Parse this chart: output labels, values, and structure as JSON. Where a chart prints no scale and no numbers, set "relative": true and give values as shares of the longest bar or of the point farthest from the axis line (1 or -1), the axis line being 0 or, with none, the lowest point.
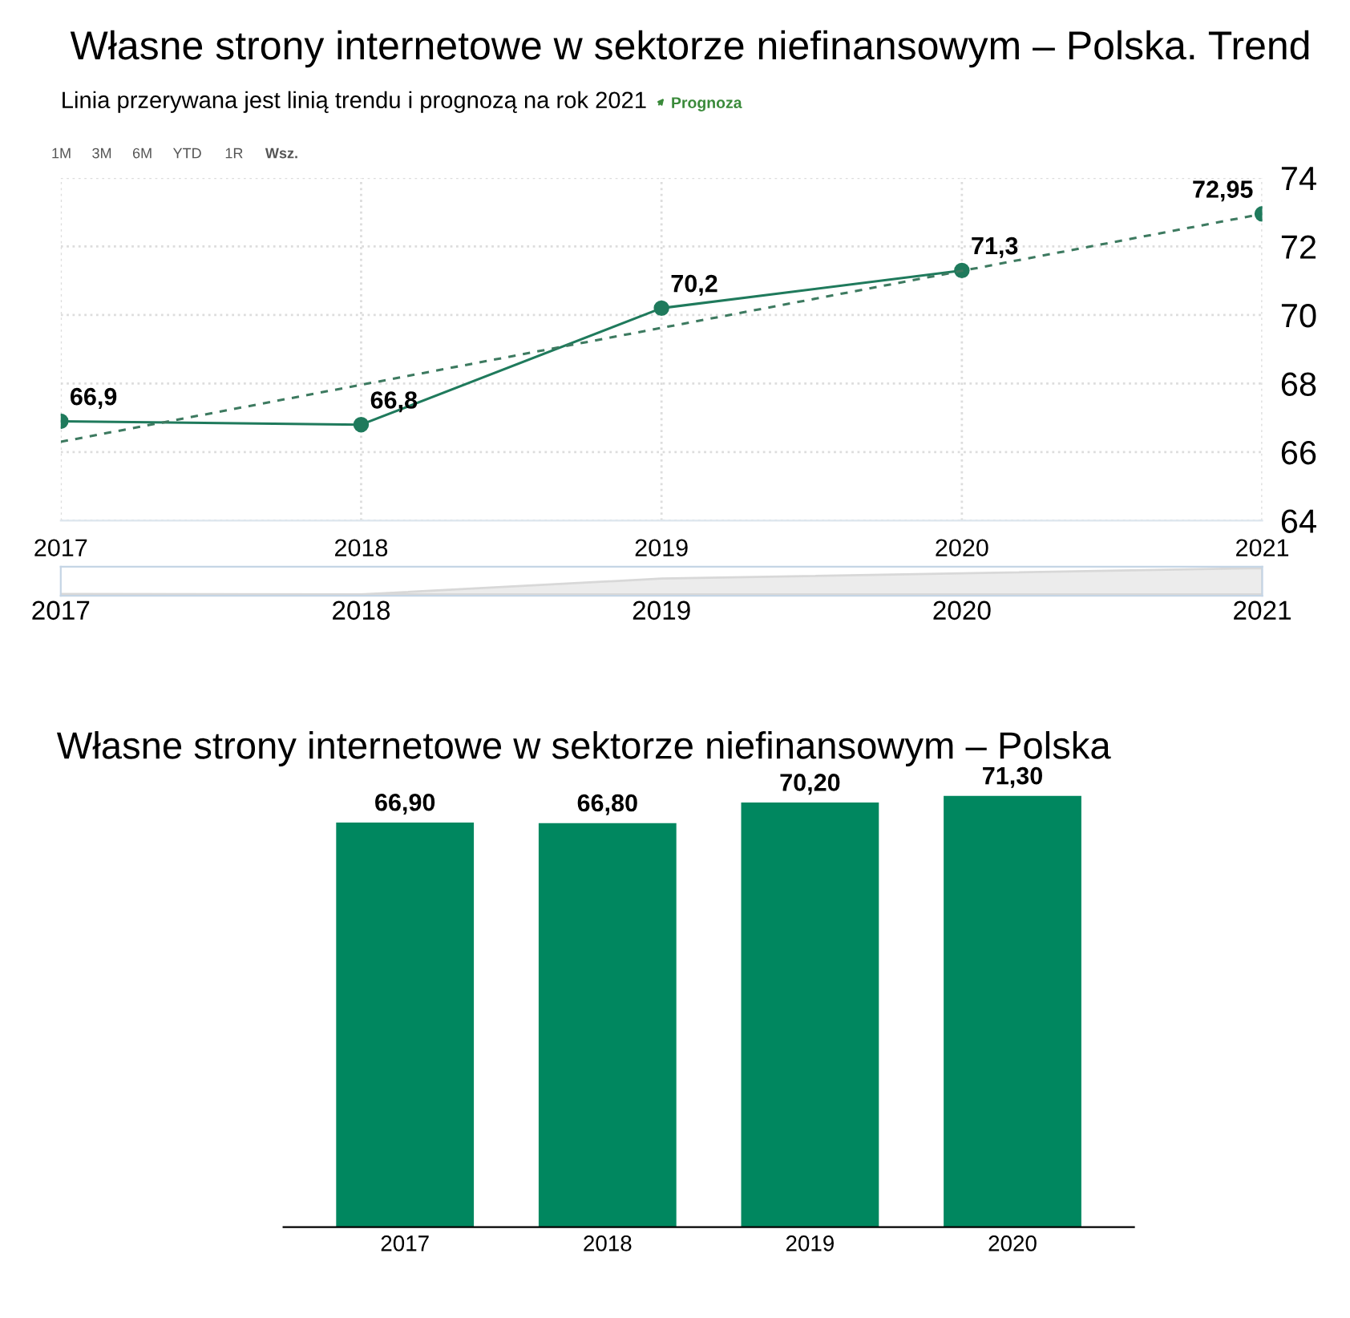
{
  "chart_data": [
    {
      "type": "line",
      "title": "Własne strony internetowe w sektorze niefinansowym – Polska. Trend",
      "subtitle": "Linia przerywana jest linią trendu i prognozą na rok 2021",
      "annotations": [
        "Prognoza",
        "1M",
        "3M",
        "6M",
        "YTD",
        "1R",
        "Wsz."
      ],
      "series": [
        {
          "type": "line",
          "color": "#1f7a5c",
          "x": [
            2017,
            2018,
            2019,
            2020
          ],
          "values": [
            66.9,
            66.8,
            70.2,
            71.3
          ],
          "value_labels": [
            "66,9",
            "66,8",
            "70,2",
            "71,3"
          ],
          "marker": "circle",
          "line_style": "solid"
        },
        {
          "type": "line",
          "color": "#3d7a60",
          "x": [
            2017,
            2021
          ],
          "values": [
            66.3,
            72.95
          ],
          "marker": "none",
          "line_style": "dashed"
        },
        {
          "type": "scatter",
          "color": "#1f7a5c",
          "x": [
            2021
          ],
          "values": [
            72.95
          ],
          "value_labels": [
            "72,95"
          ],
          "marker": "circle"
        }
      ],
      "xlim": [
        2017,
        2021
      ],
      "xticks": [
        2017,
        2018,
        2019,
        2020,
        2021
      ],
      "ylim": [
        64,
        74
      ],
      "yticks": [
        64,
        66,
        68,
        70,
        72,
        74
      ],
      "grid": true
    },
    {
      "type": "area",
      "x": [
        2017,
        2018,
        2019,
        2020,
        2021
      ],
      "values": [
        0.02,
        0,
        0.6,
        0.8,
        1
      ],
      "relative": true,
      "color": "#ececec",
      "xlim": [
        2017,
        2021
      ],
      "xticks": [
        2017,
        2018,
        2019,
        2020,
        2021
      ],
      "tick_labels": "x"
    },
    {
      "type": "bar",
      "title": "Własne strony internetowe w sektorze niefinansowym – Polska",
      "categories": [
        "2017",
        "2018",
        "2019",
        "2020"
      ],
      "values": [
        66.9,
        66.8,
        70.2,
        71.3
      ],
      "value_labels": [
        "66,90",
        "66,80",
        "70,20",
        "71,30"
      ],
      "color": "#00875f"
    }
  ]
}
